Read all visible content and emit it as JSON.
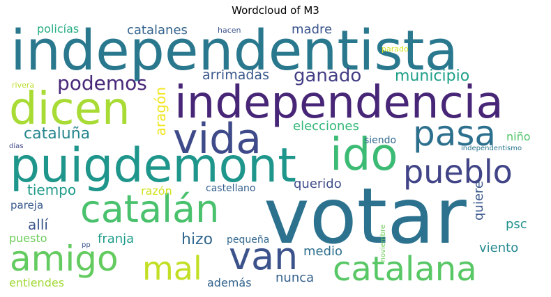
{
  "title": "Wordcloud of M3",
  "words": [
    {
      "text": "independentista",
      "color": "#2a788e"
    },
    {
      "text": "independencia",
      "color": "#482677"
    },
    {
      "text": "votar",
      "color": "#2c728e"
    },
    {
      "text": "puigdemont",
      "color": "#1f968b"
    },
    {
      "text": "dicen",
      "color": "#a8db34"
    },
    {
      "text": "vida",
      "color": "#3e4a89"
    },
    {
      "text": "pasa",
      "color": "#2d708e"
    },
    {
      "text": "ido",
      "color": "#3cbb75"
    },
    {
      "text": "pueblo",
      "color": "#414487"
    },
    {
      "text": "catalán",
      "color": "#4ac16d"
    },
    {
      "text": "amigo",
      "color": "#63cb5f"
    },
    {
      "text": "van",
      "color": "#3b528b"
    },
    {
      "text": "catalana",
      "color": "#58c765"
    },
    {
      "text": "mal",
      "color": "#c2df23"
    },
    {
      "text": "podemos",
      "color": "#482878"
    },
    {
      "text": "ganado",
      "color": "#433e85"
    },
    {
      "text": "municipio",
      "color": "#1fa088"
    },
    {
      "text": "catalanes",
      "color": "#33638d"
    },
    {
      "text": "madre",
      "color": "#3a548c"
    },
    {
      "text": "policías",
      "color": "#26ad81"
    },
    {
      "text": "hacen",
      "color": "#3b528b"
    },
    {
      "text": "parado",
      "color": "#d2e21b"
    },
    {
      "text": "rivera",
      "color": "#bade28"
    },
    {
      "text": "arrimadas",
      "color": "#38588c"
    },
    {
      "text": "aragón",
      "color": "#f1e51d"
    },
    {
      "text": "cataluña",
      "color": "#25858e"
    },
    {
      "text": "elecciones",
      "color": "#35b779"
    },
    {
      "text": "siendo",
      "color": "#31688e"
    },
    {
      "text": "niño",
      "color": "#50c46a"
    },
    {
      "text": "días",
      "color": "#3f4788"
    },
    {
      "text": "independentismo",
      "color": "#2a768e"
    },
    {
      "text": "tiempo",
      "color": "#1f9a8a"
    },
    {
      "text": "razón",
      "color": "#d0e11c"
    },
    {
      "text": "castellano",
      "color": "#34608d"
    },
    {
      "text": "querido",
      "color": "#3e4c8a"
    },
    {
      "text": "quiere",
      "color": "#39568c"
    },
    {
      "text": "pareja",
      "color": "#38598c"
    },
    {
      "text": "allí",
      "color": "#39558c"
    },
    {
      "text": "hizo",
      "color": "#31678e"
    },
    {
      "text": "psc",
      "color": "#20928c"
    },
    {
      "text": "franja",
      "color": "#1e9c89"
    },
    {
      "text": "puesto",
      "color": "#6ccd5a"
    },
    {
      "text": "pequeña",
      "color": "#31678e"
    },
    {
      "text": "noviembre",
      "color": "#6ece58"
    },
    {
      "text": "pp",
      "color": "#3a548c"
    },
    {
      "text": "viento",
      "color": "#23888e"
    },
    {
      "text": "medio",
      "color": "#2e6f8e"
    },
    {
      "text": "entiendes",
      "color": "#a2da37"
    },
    {
      "text": "además",
      "color": "#33638d"
    },
    {
      "text": "nunca",
      "color": "#35608d"
    }
  ]
}
